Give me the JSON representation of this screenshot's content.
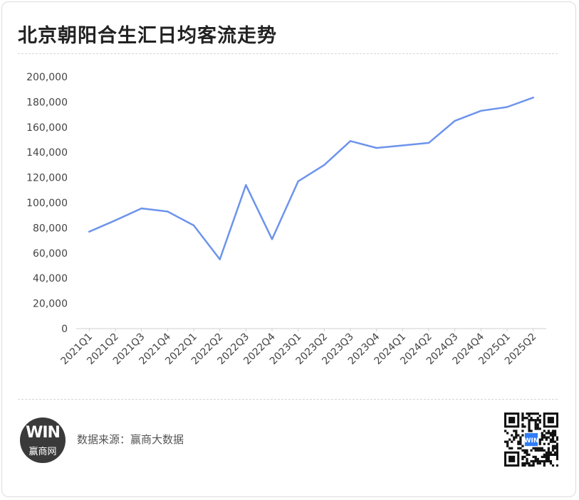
{
  "title": "北京朝阳合生汇日均客流走势",
  "footer": {
    "logo_mark": "WIN",
    "logo_text": "赢商网",
    "source_label": "数据来源：赢商大数据",
    "qr_center_mark": "WIN"
  },
  "colors": {
    "line": "#6d94ec",
    "axis": "#cfcfcf",
    "text": "#444444"
  },
  "chart_data": {
    "type": "line",
    "title": "北京朝阳合生汇日均客流走势",
    "xlabel": "",
    "ylabel": "",
    "ylim": [
      0,
      200000
    ],
    "yticks": [
      0,
      20000,
      40000,
      60000,
      80000,
      100000,
      120000,
      140000,
      160000,
      180000,
      200000
    ],
    "ytick_labels": [
      "0",
      "20,000",
      "40,000",
      "60,000",
      "80,000",
      "100,000",
      "120,000",
      "140,000",
      "160,000",
      "180,000",
      "200,000"
    ],
    "grid": false,
    "legend": "none",
    "categories": [
      "2021Q1",
      "2021Q2",
      "2021Q3",
      "2021Q4",
      "2022Q1",
      "2022Q2",
      "2022Q3",
      "2022Q4",
      "2023Q1",
      "2023Q2",
      "2023Q3",
      "2023Q4",
      "2024Q1",
      "2024Q2",
      "2024Q3",
      "2024Q4",
      "2025Q1",
      "2025Q2"
    ],
    "series": [
      {
        "values": [
          77000,
          86000,
          95500,
          93000,
          82000,
          55000,
          114000,
          71000,
          117000,
          130000,
          149000,
          143500,
          145500,
          147500,
          165000,
          173000,
          176000,
          183500
        ]
      }
    ]
  }
}
